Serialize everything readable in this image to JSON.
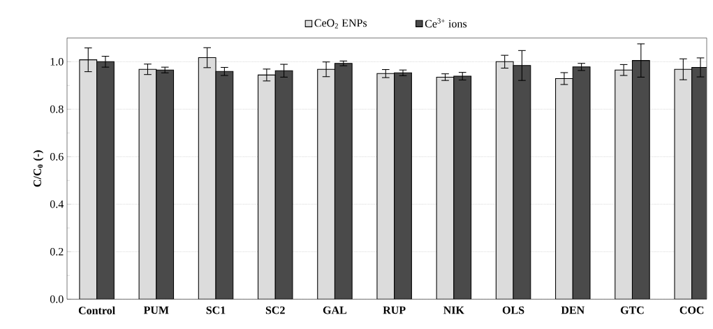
{
  "chart_data": {
    "type": "bar",
    "ylabel": "C/C$_{0}$ (-)",
    "categories": [
      "Control",
      "PUM",
      "SC1",
      "SC2",
      "GAL",
      "RUP",
      "NIK",
      "OLS",
      "DEN",
      "GTC",
      "COC"
    ],
    "series": [
      {
        "name": "CeO$_{2}$ ENPs",
        "color": "#dcdcdc",
        "values": [
          1.008,
          0.968,
          1.017,
          0.944,
          0.968,
          0.95,
          0.935,
          1.0,
          0.929,
          0.965,
          0.968
        ],
        "errors": [
          0.05,
          0.022,
          0.042,
          0.025,
          0.031,
          0.017,
          0.014,
          0.027,
          0.025,
          0.023,
          0.044
        ]
      },
      {
        "name": "Ce$^{3+}$ ions",
        "color": "#4a4a4a",
        "values": [
          1.0,
          0.965,
          0.959,
          0.962,
          0.993,
          0.953,
          0.939,
          0.984,
          0.978,
          1.005,
          0.976
        ],
        "errors": [
          0.023,
          0.012,
          0.017,
          0.027,
          0.01,
          0.012,
          0.016,
          0.063,
          0.015,
          0.07,
          0.04
        ]
      }
    ],
    "ylim": [
      0,
      1.1
    ],
    "yticks": [
      {
        "value": 0,
        "label": "0.0"
      },
      {
        "value": 0.2,
        "label": "0.2"
      },
      {
        "value": 0.4,
        "label": "0.4"
      },
      {
        "value": 0.6,
        "label": "0.6"
      },
      {
        "value": 0.8,
        "label": "0.8"
      },
      {
        "value": 1.0,
        "label": "1.0"
      }
    ],
    "grid": "y",
    "legend": "top"
  }
}
